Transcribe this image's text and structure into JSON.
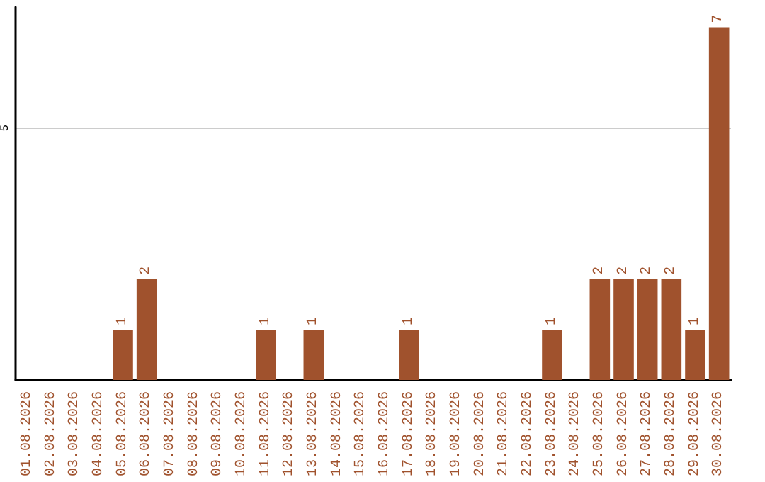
{
  "chart_data": {
    "type": "bar",
    "categories": [
      "01.08.2026",
      "02.08.2026",
      "03.08.2026",
      "04.08.2026",
      "05.08.2026",
      "06.08.2026",
      "07.08.2026",
      "08.08.2026",
      "09.08.2026",
      "10.08.2026",
      "11.08.2026",
      "12.08.2026",
      "13.08.2026",
      "14.08.2026",
      "15.08.2026",
      "16.08.2026",
      "17.08.2026",
      "18.08.2026",
      "19.08.2026",
      "20.08.2026",
      "21.08.2026",
      "22.08.2026",
      "23.08.2026",
      "24.08.2026",
      "25.08.2026",
      "26.08.2026",
      "27.08.2026",
      "28.08.2026",
      "29.08.2026",
      "30.08.2026"
    ],
    "values": [
      0,
      0,
      0,
      0,
      1,
      2,
      0,
      0,
      0,
      0,
      1,
      0,
      1,
      0,
      0,
      0,
      1,
      0,
      0,
      0,
      0,
      0,
      1,
      0,
      2,
      2,
      2,
      2,
      1,
      7
    ],
    "value_labels": [
      null,
      null,
      null,
      null,
      "1",
      "2",
      null,
      null,
      null,
      null,
      "1",
      null,
      "1",
      null,
      null,
      null,
      "1",
      null,
      null,
      null,
      null,
      null,
      "1",
      null,
      "2",
      "2",
      "2",
      "2",
      "1",
      "7"
    ],
    "color": "#a0522d",
    "ylim": [
      0,
      7.4
    ],
    "yticks": [
      5
    ],
    "grid": "y"
  }
}
